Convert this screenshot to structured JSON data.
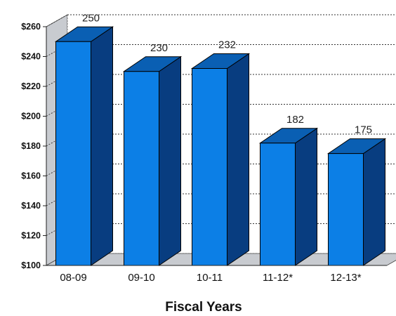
{
  "chart_data": {
    "type": "bar",
    "categories": [
      "08-09",
      "09-10",
      "10-11",
      "11-12*",
      "12-13*"
    ],
    "values": [
      250,
      230,
      232,
      182,
      175
    ],
    "value_labels": [
      "250",
      "230",
      "232",
      "182",
      "175"
    ],
    "xlabel": "Fiscal Years",
    "ylabel": "",
    "ylim": [
      100,
      260
    ],
    "y_ticks": [
      "$100",
      "$120",
      "$140",
      "$160",
      "$180",
      "$200",
      "$220",
      "$240",
      "$260"
    ],
    "grid": true,
    "style": "3d-column",
    "colors": {
      "bar_front": "#0c7fe6",
      "bar_top": "#0a5fb3",
      "bar_side": "#083d80",
      "wall": "#ffffff",
      "floor": "#c8cbd0",
      "grid": "#333333"
    }
  }
}
